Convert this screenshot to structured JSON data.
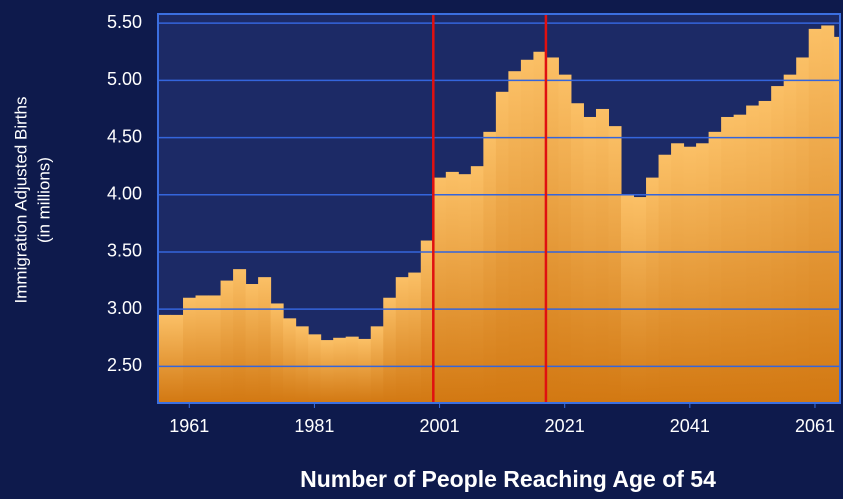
{
  "chart_data": {
    "type": "step-area",
    "title": "Number of People Reaching Age of 54",
    "ylabel": [
      "Immigration Adjusted Births",
      "(in millions)"
    ],
    "x": [
      1956,
      1958,
      1960,
      1962,
      1964,
      1966,
      1968,
      1970,
      1972,
      1974,
      1976,
      1978,
      1980,
      1982,
      1984,
      1986,
      1988,
      1990,
      1992,
      1994,
      1996,
      1998,
      2000,
      2002,
      2004,
      2006,
      2008,
      2010,
      2012,
      2014,
      2016,
      2018,
      2020,
      2022,
      2024,
      2026,
      2028,
      2030,
      2032,
      2034,
      2036,
      2038,
      2040,
      2042,
      2044,
      2046,
      2048,
      2050,
      2052,
      2054,
      2056,
      2058,
      2060,
      2062,
      2064
    ],
    "values": [
      2.95,
      2.95,
      3.1,
      3.12,
      3.12,
      3.25,
      3.35,
      3.22,
      3.28,
      3.05,
      2.92,
      2.85,
      2.78,
      2.73,
      2.75,
      2.76,
      2.74,
      2.85,
      3.1,
      3.28,
      3.32,
      3.6,
      4.15,
      4.2,
      4.18,
      4.25,
      4.55,
      4.9,
      5.08,
      5.18,
      5.25,
      5.2,
      5.05,
      4.8,
      4.68,
      4.75,
      4.6,
      4.0,
      3.98,
      4.15,
      4.35,
      4.45,
      4.42,
      4.45,
      4.55,
      4.68,
      4.7,
      4.78,
      4.82,
      4.95,
      5.05,
      5.2,
      5.45,
      5.48,
      5.38
    ],
    "color": "#f2a53c",
    "xlim": [
      1956,
      2065
    ],
    "ylim": [
      2.18,
      5.58
    ],
    "xticks": [
      1961,
      1981,
      2001,
      2021,
      2041,
      2061
    ],
    "yticks": [
      {
        "value": 2.5,
        "label": "2.50"
      },
      {
        "value": 3,
        "label": "3.00"
      },
      {
        "value": 3.5,
        "label": "3.50"
      },
      {
        "value": 4,
        "label": "4.00"
      },
      {
        "value": 4.5,
        "label": "4.50"
      },
      {
        "value": 5,
        "label": "5.00"
      },
      {
        "value": 5.5,
        "label": "5.50"
      }
    ],
    "grid": true,
    "vlines": [
      2000,
      2018
    ],
    "vline_color": "#e01010"
  }
}
